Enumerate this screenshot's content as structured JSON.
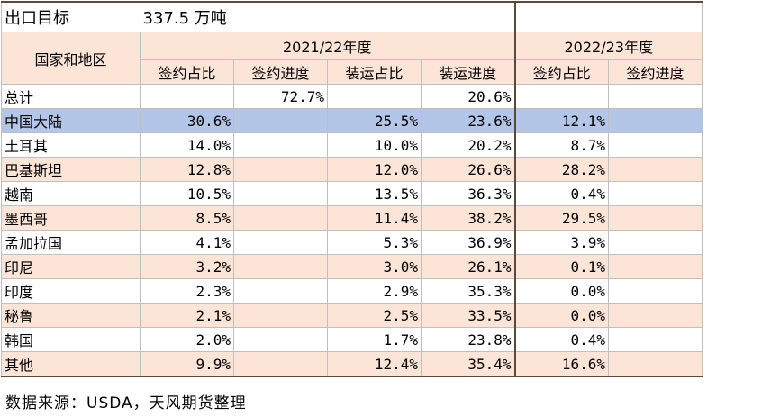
{
  "title": {
    "label": "出口目标",
    "value": "337.5 万吨"
  },
  "header": {
    "region": "国家和地区",
    "season_a": "2021/22年度",
    "season_b": "2022/23年度",
    "sign_share": "签约占比",
    "sign_progress": "签约进度",
    "ship_share": "装运占比",
    "ship_progress": "装运进度",
    "sign_share_b": "签约占比",
    "sign_progress_b": "签约进度"
  },
  "rows": [
    {
      "name": "总计",
      "a_sign_share": "",
      "a_sign_prog": "72.7%",
      "a_ship_share": "",
      "a_ship_prog": "20.6%",
      "b_sign_share": "",
      "b_sign_prog": ""
    },
    {
      "name": "中国大陆",
      "a_sign_share": "30.6%",
      "a_sign_prog": "",
      "a_ship_share": "25.5%",
      "a_ship_prog": "23.6%",
      "b_sign_share": "12.1%",
      "b_sign_prog": ""
    },
    {
      "name": "土耳其",
      "a_sign_share": "14.0%",
      "a_sign_prog": "",
      "a_ship_share": "10.0%",
      "a_ship_prog": "20.2%",
      "b_sign_share": "8.7%",
      "b_sign_prog": ""
    },
    {
      "name": "巴基斯坦",
      "a_sign_share": "12.8%",
      "a_sign_prog": "",
      "a_ship_share": "12.0%",
      "a_ship_prog": "26.6%",
      "b_sign_share": "28.2%",
      "b_sign_prog": ""
    },
    {
      "name": "越南",
      "a_sign_share": "10.5%",
      "a_sign_prog": "",
      "a_ship_share": "13.5%",
      "a_ship_prog": "36.3%",
      "b_sign_share": "0.4%",
      "b_sign_prog": ""
    },
    {
      "name": "墨西哥",
      "a_sign_share": "8.5%",
      "a_sign_prog": "",
      "a_ship_share": "11.4%",
      "a_ship_prog": "38.2%",
      "b_sign_share": "29.5%",
      "b_sign_prog": ""
    },
    {
      "name": "孟加拉国",
      "a_sign_share": "4.1%",
      "a_sign_prog": "",
      "a_ship_share": "5.3%",
      "a_ship_prog": "36.9%",
      "b_sign_share": "3.9%",
      "b_sign_prog": ""
    },
    {
      "name": "印尼",
      "a_sign_share": "3.2%",
      "a_sign_prog": "",
      "a_ship_share": "3.0%",
      "a_ship_prog": "26.1%",
      "b_sign_share": "0.1%",
      "b_sign_prog": ""
    },
    {
      "name": "印度",
      "a_sign_share": "2.3%",
      "a_sign_prog": "",
      "a_ship_share": "2.9%",
      "a_ship_prog": "35.3%",
      "b_sign_share": "0.0%",
      "b_sign_prog": ""
    },
    {
      "name": "秘鲁",
      "a_sign_share": "2.1%",
      "a_sign_prog": "",
      "a_ship_share": "2.5%",
      "a_ship_prog": "33.5%",
      "b_sign_share": "0.0%",
      "b_sign_prog": ""
    },
    {
      "name": "韩国",
      "a_sign_share": "2.0%",
      "a_sign_prog": "",
      "a_ship_share": "1.7%",
      "a_ship_prog": "23.8%",
      "b_sign_share": "0.4%",
      "b_sign_prog": ""
    },
    {
      "name": "其他",
      "a_sign_share": "9.9%",
      "a_sign_prog": "",
      "a_ship_share": "12.4%",
      "a_ship_prog": "35.4%",
      "b_sign_share": "16.6%",
      "b_sign_prog": ""
    }
  ],
  "source": "数据来源：USDA，天风期货整理",
  "colors": {
    "band": "#fce4d6",
    "highlight": "#b4c6e7",
    "border": "#bfbfbf",
    "frame": "#5a4a3a"
  }
}
